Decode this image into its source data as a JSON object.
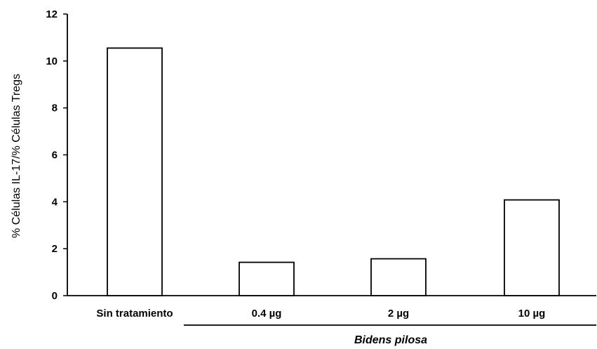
{
  "chart_data": {
    "type": "bar",
    "title": "",
    "xlabel": "",
    "ylabel": "% Células IL-17/% Células Tregs",
    "categories": [
      "Sin tratamiento",
      "0.4 µg",
      "2 µg",
      "10 µg"
    ],
    "values": [
      10.55,
      1.42,
      1.57,
      4.08
    ],
    "ylim": [
      0,
      12
    ],
    "yticks": [
      "0",
      "2",
      "4",
      "6",
      "8",
      "10",
      "12"
    ],
    "grid": false,
    "legend": "none",
    "bar_fill": "#ffffff",
    "bar_stroke": "#000000",
    "group_label": "Bidens pilosa"
  }
}
